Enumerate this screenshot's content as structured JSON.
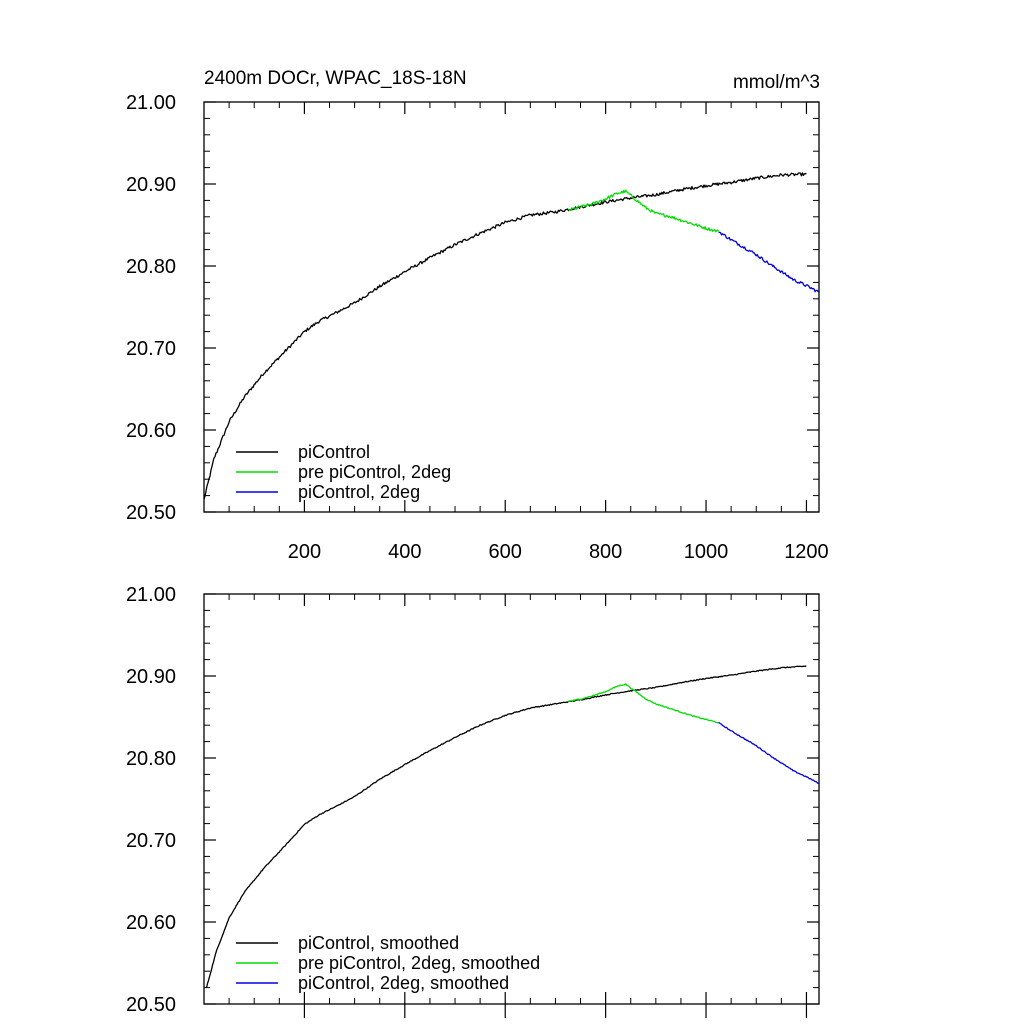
{
  "chart_data": [
    {
      "type": "line",
      "title": "2400m DOCr, WPAC_18S-18N",
      "units": "mmol/m^3",
      "xlim": [
        0,
        1225
      ],
      "ylim": [
        20.5,
        21.0
      ],
      "xticks": [
        200,
        400,
        600,
        800,
        1000,
        1200
      ],
      "xtick_labels": [
        "200",
        "400",
        "600",
        "800",
        "1000",
        "1200"
      ],
      "yticks": [
        20.5,
        20.6,
        20.7,
        20.8,
        20.9,
        21.0
      ],
      "ytick_labels": [
        "20.50",
        "20.60",
        "20.70",
        "20.80",
        "20.90",
        "21.00"
      ],
      "grid": false,
      "legend_position": "bottom-left",
      "series": [
        {
          "name": "piControl",
          "color": "#000000",
          "x": [
            0,
            20,
            50,
            80,
            120,
            160,
            200,
            230,
            260,
            300,
            350,
            400,
            450,
            500,
            550,
            600,
            650,
            700,
            750,
            800,
            850,
            900,
            950,
            1000,
            1050,
            1100,
            1150,
            1200
          ],
          "y": [
            20.515,
            20.565,
            20.61,
            20.64,
            20.67,
            20.695,
            20.72,
            20.733,
            20.742,
            20.755,
            20.775,
            20.793,
            20.81,
            20.826,
            20.84,
            20.853,
            20.862,
            20.866,
            20.872,
            20.878,
            20.883,
            20.887,
            20.893,
            20.898,
            20.902,
            20.907,
            20.911,
            20.912
          ]
        },
        {
          "name": "pre piControl, 2deg",
          "color": "#00dd00",
          "x": [
            725,
            750,
            775,
            800,
            825,
            840,
            860,
            880,
            900,
            925,
            950,
            975,
            1000,
            1025
          ],
          "y": [
            20.868,
            20.872,
            20.876,
            20.882,
            20.889,
            20.891,
            20.881,
            20.871,
            20.864,
            20.861,
            20.856,
            20.851,
            20.846,
            20.842
          ]
        },
        {
          "name": "piControl, 2deg",
          "color": "#0000dd",
          "x": [
            1025,
            1050,
            1075,
            1100,
            1125,
            1150,
            1175,
            1200,
            1225
          ],
          "y": [
            20.842,
            20.832,
            20.823,
            20.814,
            20.803,
            20.793,
            20.783,
            20.776,
            20.768
          ]
        }
      ]
    },
    {
      "type": "line",
      "xlim": [
        0,
        1225
      ],
      "ylim": [
        20.5,
        21.0
      ],
      "xticks": [
        200,
        400,
        600,
        800,
        1000,
        1200
      ],
      "yticks": [
        20.5,
        20.6,
        20.7,
        20.8,
        20.9,
        21.0
      ],
      "ytick_labels": [
        "20.50",
        "20.60",
        "20.70",
        "20.80",
        "20.90",
        "21.00"
      ],
      "grid": false,
      "legend_position": "bottom-left",
      "series": [
        {
          "name": "piControl, smoothed",
          "color": "#000000",
          "x": [
            5,
            25,
            50,
            80,
            120,
            160,
            200,
            230,
            260,
            300,
            350,
            400,
            450,
            500,
            550,
            600,
            650,
            700,
            750,
            800,
            850,
            900,
            950,
            1000,
            1050,
            1100,
            1150,
            1200
          ],
          "y": [
            20.52,
            20.565,
            20.605,
            20.636,
            20.666,
            20.692,
            20.719,
            20.731,
            20.74,
            20.753,
            20.774,
            20.792,
            20.809,
            20.825,
            20.84,
            20.852,
            20.861,
            20.866,
            20.871,
            20.877,
            20.882,
            20.886,
            20.892,
            20.897,
            20.901,
            20.906,
            20.91,
            20.912
          ]
        },
        {
          "name": "pre piControl, 2deg, smoothed",
          "color": "#00dd00",
          "x": [
            725,
            750,
            775,
            800,
            825,
            840,
            860,
            880,
            900,
            925,
            950,
            975,
            1000,
            1025
          ],
          "y": [
            20.869,
            20.872,
            20.876,
            20.881,
            20.888,
            20.89,
            20.881,
            20.872,
            20.866,
            20.861,
            20.856,
            20.851,
            20.847,
            20.843
          ]
        },
        {
          "name": "piControl, 2deg, smoothed",
          "color": "#0000dd",
          "x": [
            1025,
            1050,
            1075,
            1100,
            1125,
            1150,
            1175,
            1200,
            1225
          ],
          "y": [
            20.843,
            20.833,
            20.824,
            20.815,
            20.804,
            20.794,
            20.784,
            20.777,
            20.769
          ]
        }
      ]
    }
  ]
}
